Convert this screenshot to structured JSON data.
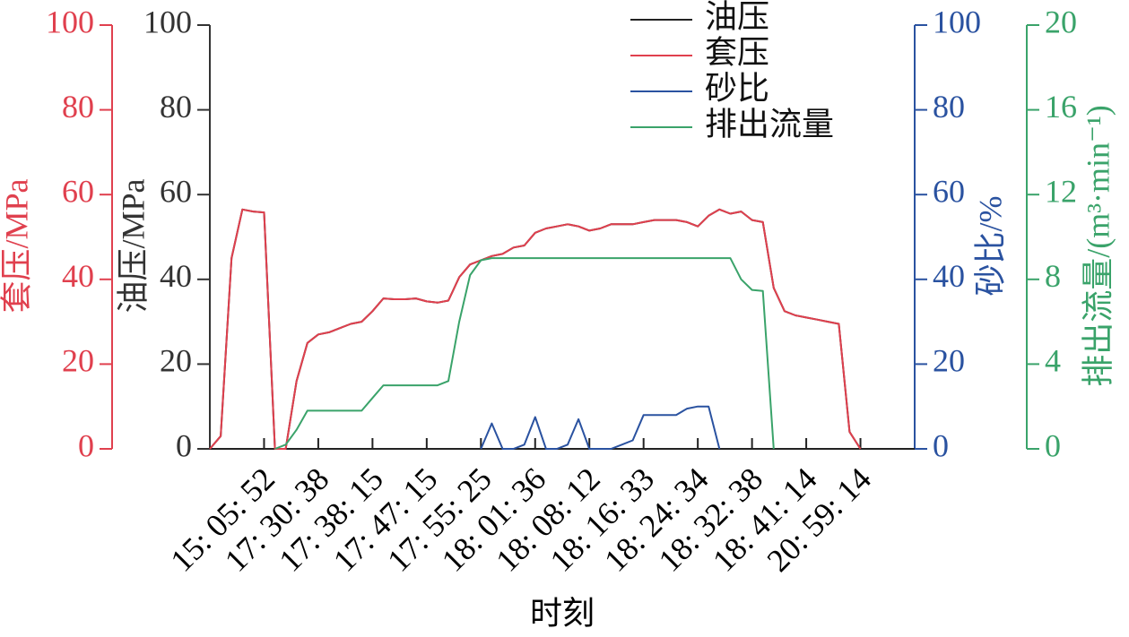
{
  "chart_data": {
    "type": "line",
    "x_label": "时刻",
    "categories": [
      null,
      null,
      null,
      null,
      null,
      "15: 05: 52",
      null,
      null,
      null,
      null,
      "17: 30: 38",
      null,
      null,
      null,
      null,
      "17: 38: 15",
      null,
      null,
      null,
      null,
      "17: 47: 15",
      null,
      null,
      null,
      null,
      "17: 55: 25",
      null,
      null,
      null,
      null,
      "18: 01: 36",
      null,
      null,
      null,
      null,
      "18: 08: 12",
      null,
      null,
      null,
      null,
      "18: 16: 33",
      null,
      null,
      null,
      null,
      "18: 24: 34",
      null,
      null,
      null,
      null,
      "18: 32: 38",
      null,
      null,
      null,
      null,
      "18: 41: 14",
      null,
      null,
      null,
      null,
      "20: 59: 14",
      null,
      null,
      null,
      null,
      null
    ],
    "axes": [
      {
        "label": "套压/MPa",
        "color": "#e0404e",
        "side": "left-outer",
        "lim": [
          0,
          100
        ],
        "ticks": [
          0,
          20,
          40,
          60,
          80,
          100
        ]
      },
      {
        "label": "油压/MPa",
        "color": "#333333",
        "side": "left",
        "lim": [
          0,
          100
        ],
        "ticks": [
          0,
          20,
          40,
          60,
          80,
          100
        ]
      },
      {
        "label": "砂比/%",
        "color": "#2a52a0",
        "side": "right",
        "lim": [
          0,
          100
        ],
        "ticks": [
          0,
          20,
          40,
          60,
          80,
          100
        ]
      },
      {
        "label": "排出流量/(m³·min⁻¹)",
        "color": "#3aa36a",
        "side": "right-outer",
        "lim": [
          0,
          20
        ],
        "ticks": [
          0,
          4,
          8,
          12,
          16,
          20
        ]
      }
    ],
    "legend": "top-right",
    "series": [
      {
        "name": "油压",
        "color": "#222222",
        "axis": 1,
        "values": [
          0,
          3,
          45,
          56.5,
          56,
          55.8,
          0,
          0,
          16,
          25,
          27,
          27.5,
          28.5,
          29.5,
          30,
          32.5,
          35.5,
          35.3,
          35.3,
          35.5,
          34.8,
          34.5,
          35,
          40.5,
          43.5,
          44.5,
          45.5,
          46,
          47.5,
          48,
          51,
          52,
          52.5,
          53,
          52.5,
          51.5,
          52,
          53,
          53,
          53,
          53.5,
          54,
          54,
          54,
          53.5,
          52.5,
          55,
          56.5,
          55.5,
          56,
          54,
          53.5,
          38,
          32.5,
          31.5,
          31,
          30.5,
          30,
          29.5,
          4,
          0,
          null,
          null,
          null,
          null,
          null
        ]
      },
      {
        "name": "套压",
        "color": "#e0404e",
        "axis": 0,
        "values": [
          0,
          3,
          45,
          56.5,
          56,
          55.8,
          0,
          0,
          16,
          25,
          27,
          27.5,
          28.5,
          29.5,
          30,
          32.5,
          35.5,
          35.3,
          35.3,
          35.5,
          34.8,
          34.5,
          35,
          40.5,
          43.5,
          44.5,
          45.5,
          46,
          47.5,
          48,
          51,
          52,
          52.5,
          53,
          52.5,
          51.5,
          52,
          53,
          53,
          53,
          53.5,
          54,
          54,
          54,
          53.5,
          52.5,
          55,
          56.5,
          55.5,
          56,
          54,
          53.5,
          38,
          32.5,
          31.5,
          31,
          30.5,
          30,
          29.5,
          4,
          0,
          null,
          null,
          null,
          null,
          null
        ]
      },
      {
        "name": "砂比",
        "color": "#2a52a0",
        "axis": 2,
        "values": [
          null,
          null,
          null,
          null,
          null,
          null,
          null,
          null,
          null,
          null,
          null,
          null,
          null,
          null,
          null,
          null,
          null,
          null,
          null,
          null,
          null,
          null,
          null,
          null,
          null,
          0,
          6,
          0,
          0,
          1,
          7.5,
          0,
          0,
          1,
          7,
          0,
          0,
          0,
          1,
          2,
          8,
          8,
          8,
          8,
          9.5,
          10,
          10,
          0,
          null,
          null,
          null,
          null,
          null,
          null,
          null,
          null,
          null,
          null,
          null,
          null,
          null,
          null,
          null,
          null,
          null,
          null
        ]
      },
      {
        "name": "排出流量",
        "color": "#3aa36a",
        "axis": 3,
        "values": [
          null,
          null,
          null,
          null,
          null,
          null,
          0,
          0.2,
          0.9,
          1.8,
          1.8,
          1.8,
          1.8,
          1.8,
          1.8,
          2.4,
          3,
          3,
          3,
          3,
          3,
          3,
          3.2,
          6,
          8.2,
          8.9,
          9,
          9,
          9,
          9,
          9,
          9,
          9,
          9,
          9,
          9,
          9,
          9,
          9,
          9,
          9,
          9,
          9,
          9,
          9,
          9,
          9,
          9,
          9,
          8,
          7.5,
          7.45,
          0,
          null,
          null,
          null,
          null,
          null,
          null,
          null,
          null,
          null,
          null,
          null,
          null,
          null
        ]
      }
    ]
  }
}
